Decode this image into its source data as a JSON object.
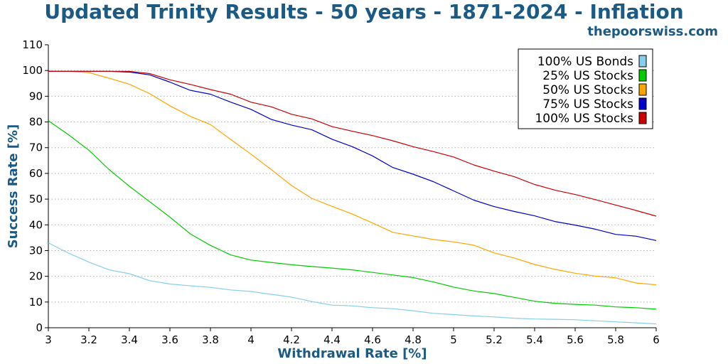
{
  "header": {
    "title": "Updated Trinity Results - 50 years - 1871-2024 - Inflation",
    "site": "thepoorswiss.com"
  },
  "chart_data": {
    "type": "line",
    "xlabel": "Withdrawal Rate [%]",
    "ylabel": "Success Rate [%]",
    "xlim": [
      3,
      6
    ],
    "ylim": [
      0,
      110
    ],
    "xticks": [
      "3",
      "3.2",
      "3.4",
      "3.6",
      "3.8",
      "4",
      "4.2",
      "4.4",
      "4.6",
      "4.8",
      "5",
      "5.2",
      "5.4",
      "5.6",
      "5.8",
      "6"
    ],
    "yticks": [
      "0",
      "10",
      "20",
      "30",
      "40",
      "50",
      "60",
      "70",
      "80",
      "90",
      "100",
      "110"
    ],
    "grid": true,
    "legend_position": "top-right",
    "x": [
      3.0,
      3.1,
      3.2,
      3.3,
      3.4,
      3.5,
      3.6,
      3.7,
      3.8,
      3.9,
      4.0,
      4.1,
      4.2,
      4.3,
      4.4,
      4.5,
      4.6,
      4.7,
      4.8,
      4.9,
      5.0,
      5.1,
      5.2,
      5.3,
      5.4,
      5.5,
      5.6,
      5.7,
      5.8,
      5.9,
      6.0
    ],
    "series": [
      {
        "name": "100% US Bonds",
        "color": "#87ceeb",
        "values": [
          33,
          29,
          25.5,
          22.5,
          21,
          18.3,
          17,
          16.3,
          15.7,
          14.7,
          14.1,
          13,
          11.9,
          10.2,
          8.8,
          8.5,
          7.8,
          7.4,
          6.6,
          5.6,
          5.1,
          4.6,
          4.2,
          3.7,
          3.4,
          3.3,
          3.1,
          2.7,
          2.3,
          1.9,
          1.5
        ]
      },
      {
        "name": "25% US Stocks",
        "color": "#00cc00",
        "values": [
          80.5,
          75,
          69,
          61.5,
          55,
          49,
          43,
          36.5,
          32,
          28.3,
          26.3,
          25.4,
          24.5,
          23.8,
          23.2,
          22.5,
          21.5,
          20.5,
          19.5,
          17.8,
          15.8,
          14.3,
          13.3,
          11.8,
          10.3,
          9.5,
          9.1,
          8.8,
          8.1,
          7.8,
          7.2
        ]
      },
      {
        "name": "50% US Stocks",
        "color": "#ffa500",
        "values": [
          99.7,
          99.7,
          99.2,
          97,
          94.7,
          91,
          86.3,
          82.2,
          79,
          73.2,
          67.5,
          61.5,
          55.3,
          50.3,
          47.2,
          44.2,
          40.7,
          37.1,
          35.7,
          34.3,
          33.4,
          32.1,
          29.1,
          27.1,
          24.6,
          22.7,
          21.2,
          20.1,
          19.4,
          17.4,
          16.7
        ]
      },
      {
        "name": "75% US Stocks",
        "color": "#0000cd",
        "values": [
          99.7,
          99.7,
          99.7,
          99.7,
          99.4,
          98.3,
          95.5,
          92.3,
          90.8,
          87.7,
          84.9,
          81,
          78.8,
          77,
          73.3,
          70.4,
          66.8,
          62.3,
          59.7,
          56.8,
          53.2,
          49.6,
          47.1,
          45.2,
          43.5,
          41.3,
          39.9,
          38.3,
          36.3,
          35.6,
          33.9
        ]
      },
      {
        "name": "100% US Stocks",
        "color": "#cc0000",
        "values": [
          99.7,
          99.7,
          99.7,
          99.7,
          99.7,
          98.8,
          96.4,
          94.6,
          92.6,
          90.8,
          87.7,
          85.9,
          83,
          81.2,
          78.2,
          76.4,
          74.7,
          72.7,
          70.4,
          68.5,
          66.4,
          63.3,
          60.9,
          58.7,
          55.7,
          53.5,
          51.8,
          49.8,
          47.7,
          45.6,
          43.4
        ]
      }
    ]
  }
}
